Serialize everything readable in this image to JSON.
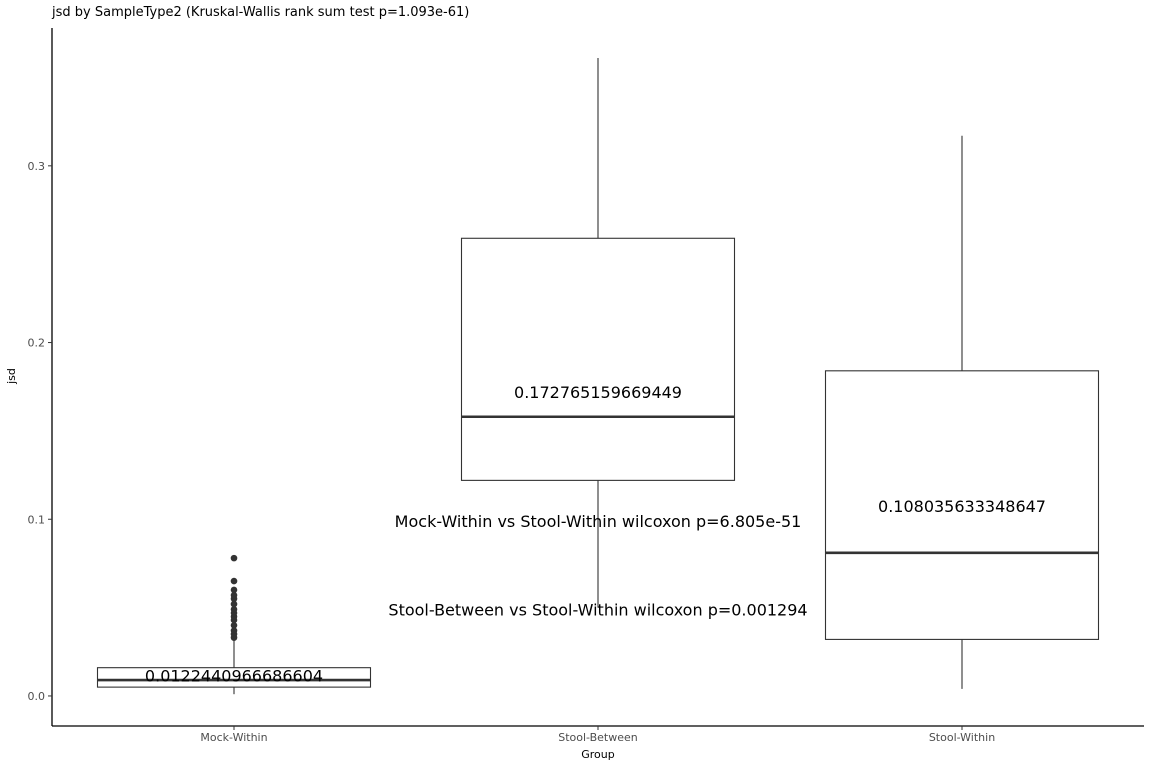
{
  "chart_data": {
    "type": "boxplot",
    "title": "jsd by SampleType2 (Kruskal-Wallis rank sum test p=1.093e-61)",
    "xlabel": "Group",
    "ylabel": "jsd",
    "ylim": [
      -0.017,
      0.378
    ],
    "yticks": [
      0.0,
      0.1,
      0.2,
      0.3
    ],
    "ytick_labels": [
      "0.0",
      "0.1",
      "0.2",
      "0.3"
    ],
    "grid": false,
    "categories": [
      "Mock-Within",
      "Stool-Between",
      "Stool-Within"
    ],
    "boxes": [
      {
        "name": "Mock-Within",
        "whisker_low": 0.001,
        "q1": 0.005,
        "median": 0.009,
        "q3": 0.016,
        "whisker_high": 0.032,
        "outliers": [
          0.033,
          0.035,
          0.037,
          0.04,
          0.043,
          0.045,
          0.047,
          0.049,
          0.052,
          0.055,
          0.057,
          0.06,
          0.065,
          0.078
        ],
        "mean_label": "0.0122440966686604",
        "mean_label_y": 0.0116
      },
      {
        "name": "Stool-Between",
        "whisker_low": 0.05,
        "q1": 0.122,
        "median": 0.158,
        "q3": 0.259,
        "whisker_high": 0.361,
        "outliers": [],
        "mean_label": "0.172765159669449",
        "mean_label_y": 0.172
      },
      {
        "name": "Stool-Within",
        "whisker_low": 0.004,
        "q1": 0.032,
        "median": 0.081,
        "q3": 0.184,
        "whisker_high": 0.317,
        "outliers": [],
        "mean_label": "0.108035633348647",
        "mean_label_y": 0.1075
      }
    ],
    "annotations": [
      {
        "text": "Mock-Within vs Stool-Within wilcoxon p=6.805e-51",
        "x_category": 1,
        "y": 0.099
      },
      {
        "text": "Stool-Between vs Stool-Within wilcoxon p=0.001294",
        "x_category": 1,
        "y": 0.049
      }
    ],
    "colors": {
      "box_stroke": "#333333",
      "box_fill": "#ffffff",
      "axis": "#000000",
      "outlier": "#333333"
    }
  }
}
